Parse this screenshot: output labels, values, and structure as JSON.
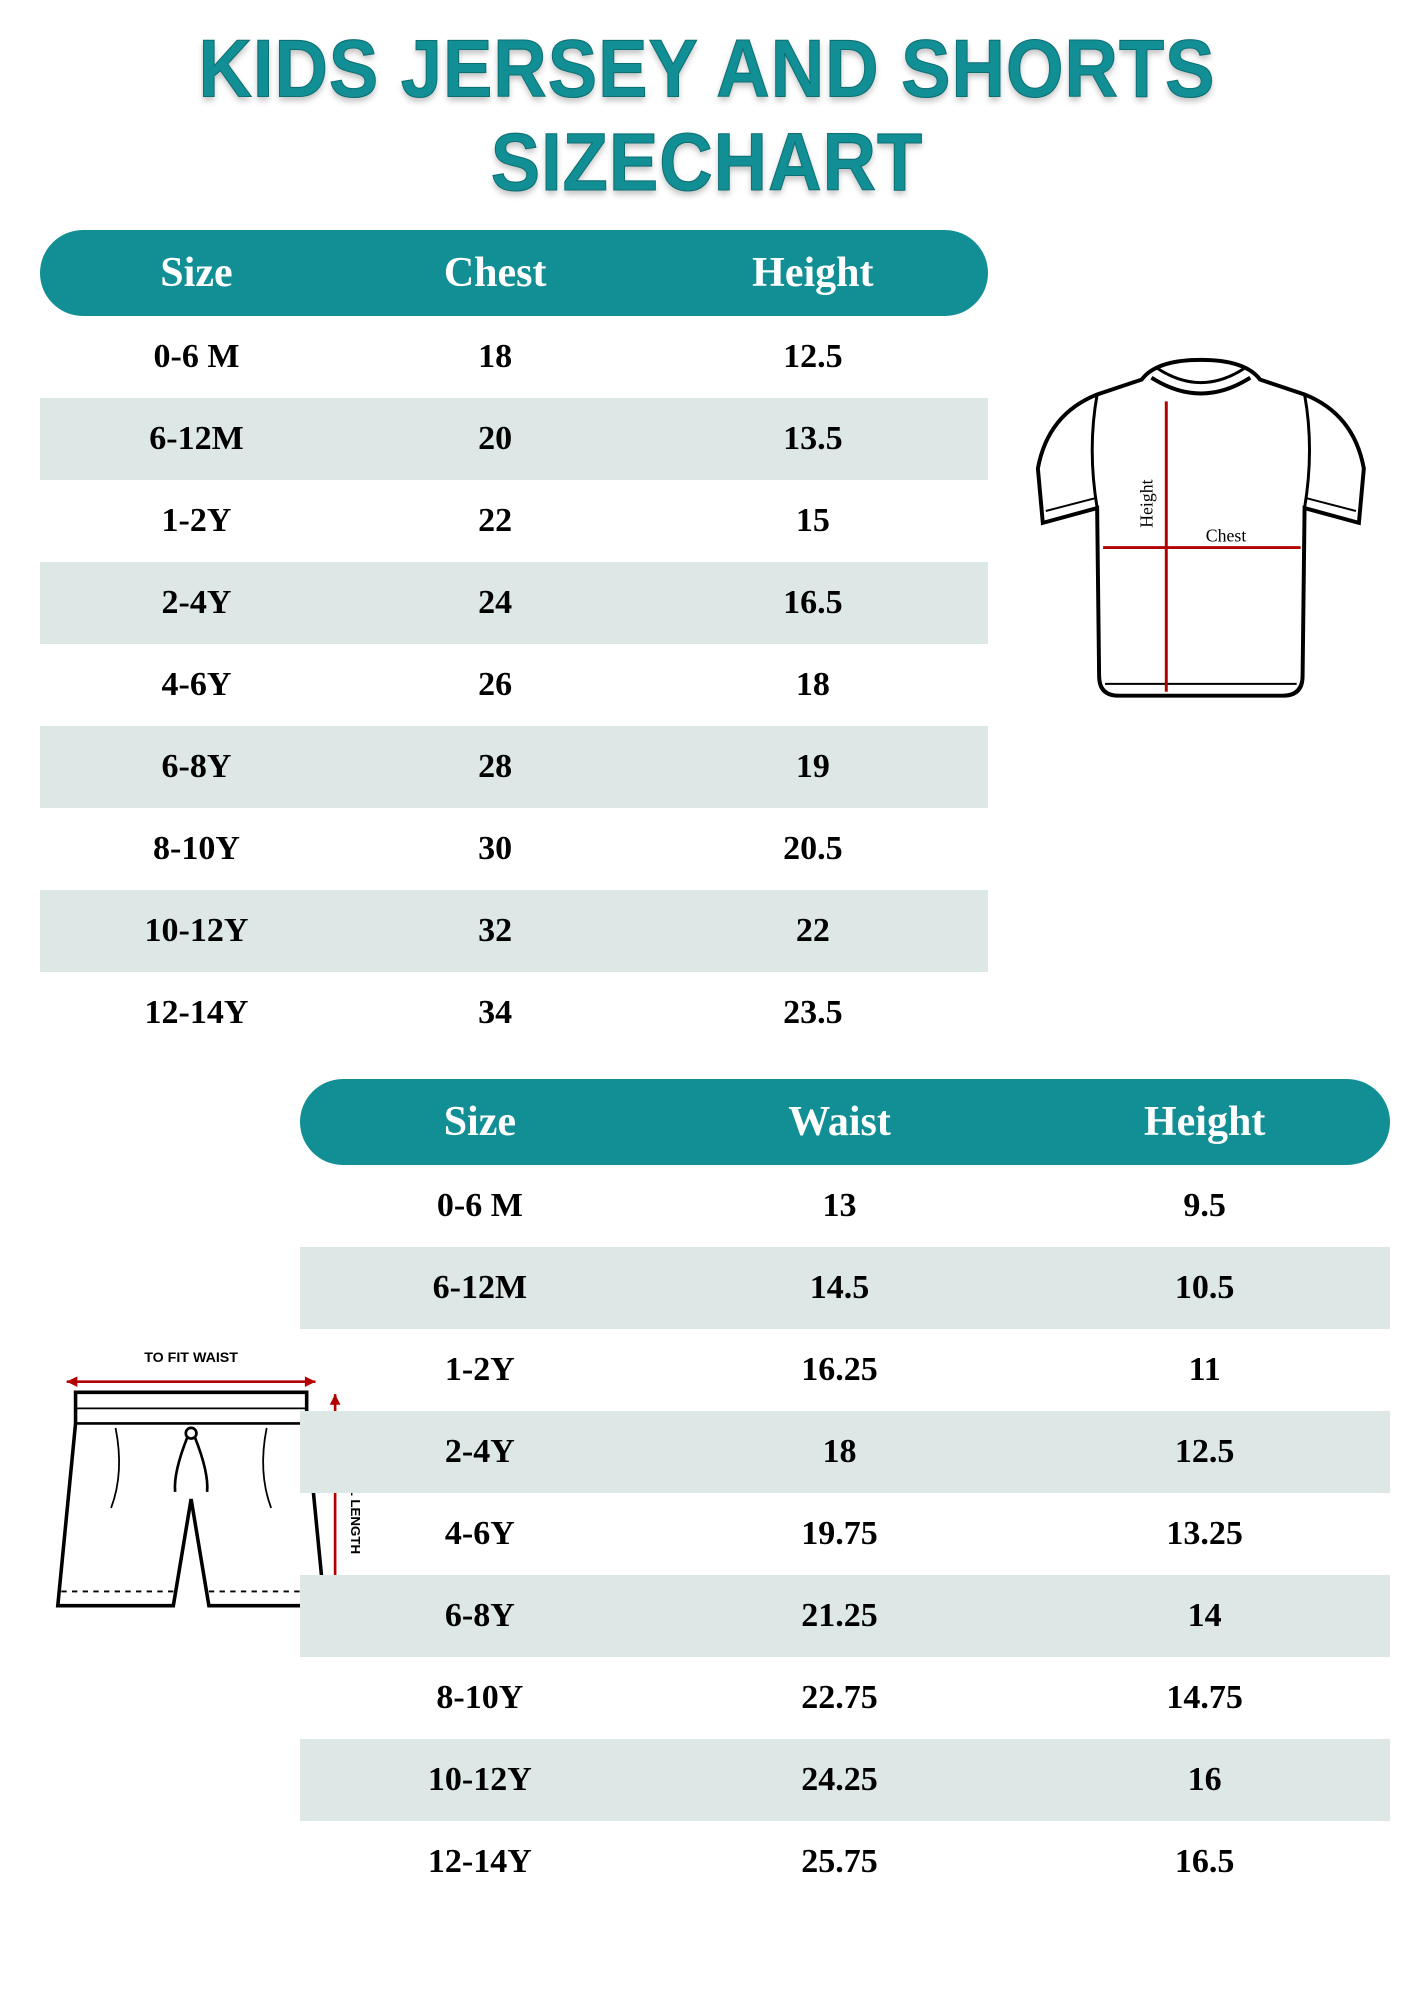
{
  "title": "KIDS JERSEY AND SHORTS SIZECHART",
  "colors": {
    "accent": "#118f94",
    "rowAlt": "#dde7e5",
    "text": "#000000",
    "headerText": "#ffffff",
    "measureLine": "#b30000",
    "diagramStroke": "#000000"
  },
  "jersey": {
    "headers": [
      "Size",
      "Chest",
      "Height"
    ],
    "rows": [
      [
        "0-6 M",
        "18",
        "12.5"
      ],
      [
        "6-12M",
        "20",
        "13.5"
      ],
      [
        "1-2Y",
        "22",
        "15"
      ],
      [
        "2-4Y",
        "24",
        "16.5"
      ],
      [
        "4-6Y",
        "26",
        "18"
      ],
      [
        "6-8Y",
        "28",
        "19"
      ],
      [
        "8-10Y",
        "30",
        "20.5"
      ],
      [
        "10-12Y",
        "32",
        "22"
      ],
      [
        "12-14Y",
        "34",
        "23.5"
      ]
    ],
    "diagram": {
      "heightLabel": "Height",
      "chestLabel": "Chest"
    }
  },
  "shorts": {
    "headers": [
      "Size",
      "Waist",
      "Height"
    ],
    "rows": [
      [
        "0-6 M",
        "13",
        "9.5"
      ],
      [
        "6-12M",
        "14.5",
        "10.5"
      ],
      [
        "1-2Y",
        "16.25",
        "11"
      ],
      [
        "2-4Y",
        "18",
        "12.5"
      ],
      [
        "4-6Y",
        "19.75",
        "13.25"
      ],
      [
        "6-8Y",
        "21.25",
        "14"
      ],
      [
        "8-10Y",
        "22.75",
        "14.75"
      ],
      [
        "10-12Y",
        "24.25",
        "16"
      ],
      [
        "12-14Y",
        "25.75",
        "16.5"
      ]
    ],
    "diagram": {
      "waistLabel": "TO FIT WAIST",
      "lengthLabel": "TOTAL LENGTH"
    }
  }
}
